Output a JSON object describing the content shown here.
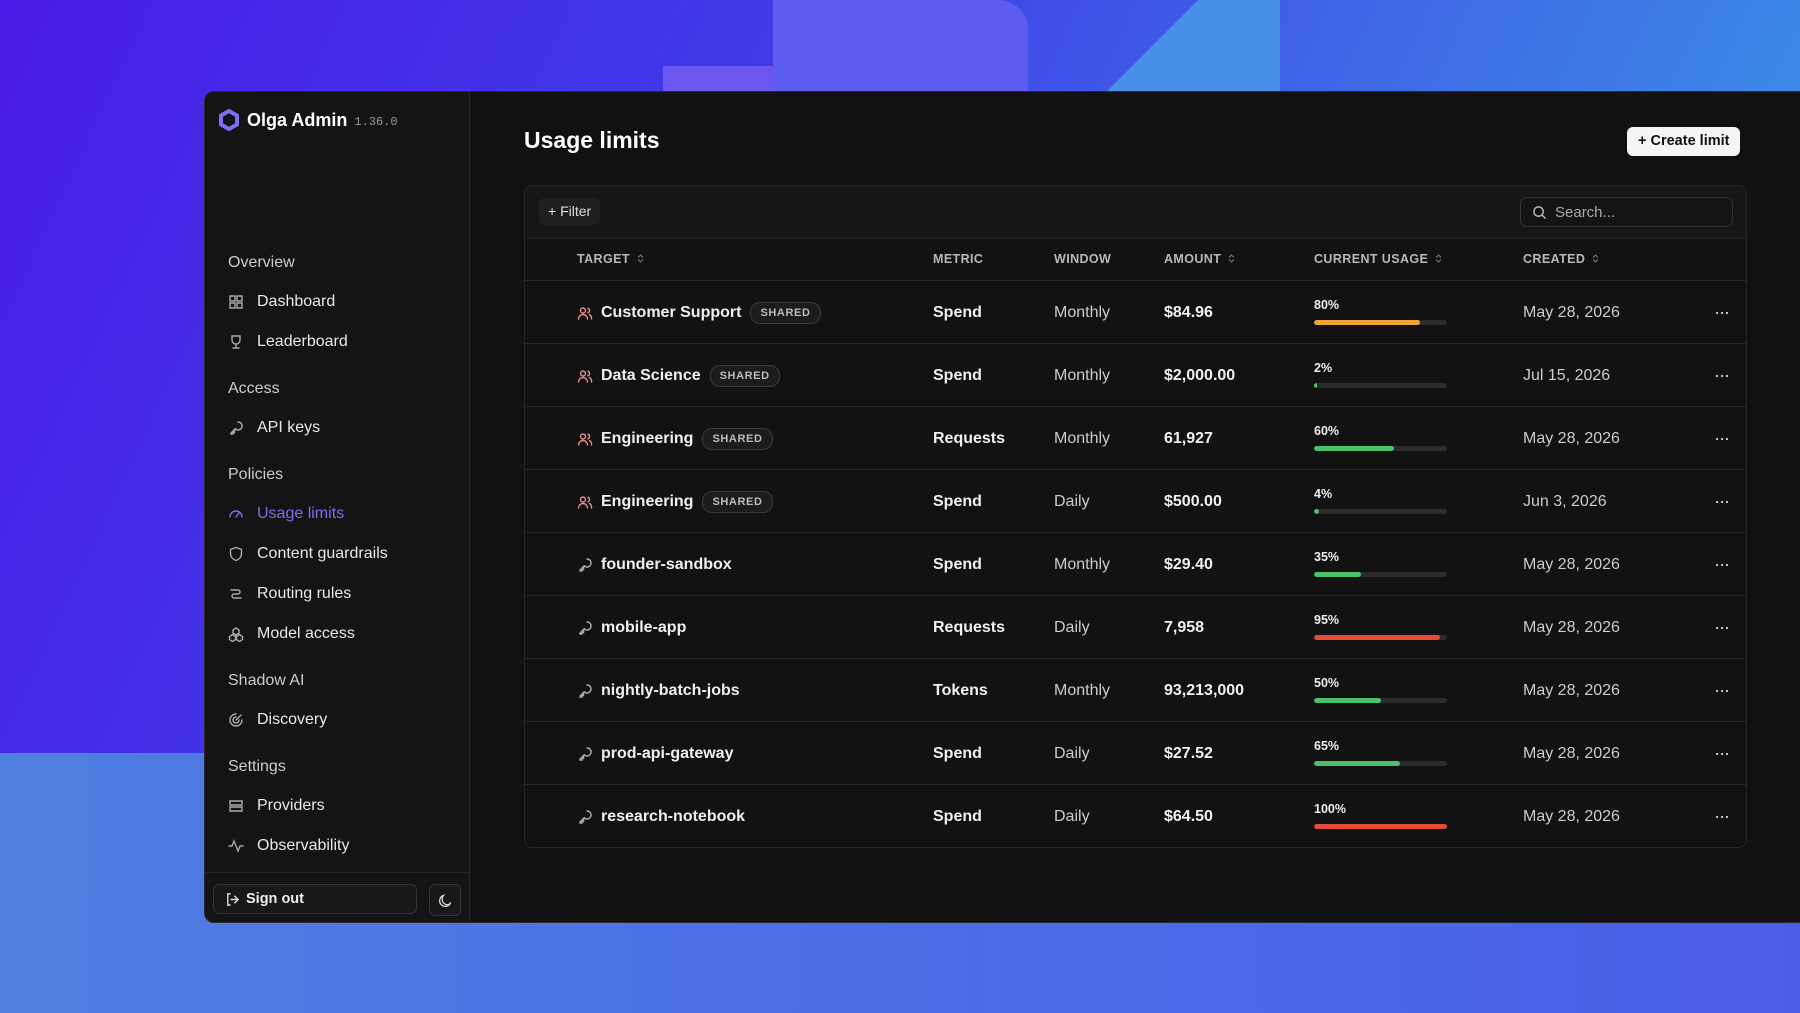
{
  "sidebar": {
    "brand": "Olga Admin",
    "version": "1.36.0",
    "groups": [
      {
        "title": "Overview",
        "items": [
          {
            "label": "Dashboard"
          },
          {
            "label": "Leaderboard"
          }
        ]
      },
      {
        "title": "Access",
        "items": [
          {
            "label": "API keys"
          }
        ]
      },
      {
        "title": "Policies",
        "items": [
          {
            "label": "Usage limits",
            "active": true
          },
          {
            "label": "Content guardrails"
          },
          {
            "label": "Routing rules"
          },
          {
            "label": "Model access"
          }
        ]
      },
      {
        "title": "Shadow AI",
        "items": [
          {
            "label": "Discovery"
          }
        ]
      },
      {
        "title": "Settings",
        "items": [
          {
            "label": "Providers"
          },
          {
            "label": "Observability"
          }
        ]
      }
    ],
    "sign_out": "Sign out"
  },
  "main": {
    "title": "Usage limits",
    "create_button": "+ Create limit",
    "filter_button": "+ Filter",
    "search_placeholder": "Search..."
  },
  "table": {
    "usage_scale": [
      0,
      100
    ],
    "columns": [
      {
        "label": "TARGET",
        "sortable": true
      },
      {
        "label": "METRIC",
        "sortable": false
      },
      {
        "label": "WINDOW",
        "sortable": false
      },
      {
        "label": "AMOUNT",
        "sortable": true
      },
      {
        "label": "CURRENT USAGE",
        "sortable": true
      },
      {
        "label": "CREATED",
        "sortable": true
      }
    ],
    "rows": [
      {
        "icon": "team",
        "target": "Customer Support",
        "badge": "SHARED",
        "metric": "Spend",
        "window": "Monthly",
        "amount": "$84.96",
        "usage": 80,
        "usage_label": "80%",
        "usage_color": "#f0a53a",
        "created": "May 28, 2026"
      },
      {
        "icon": "team",
        "target": "Data Science",
        "badge": "SHARED",
        "metric": "Spend",
        "window": "Monthly",
        "amount": "$2,000.00",
        "usage": 2,
        "usage_label": "2%",
        "usage_color": "#4cc16a",
        "created": "Jul 15, 2026"
      },
      {
        "icon": "team",
        "target": "Engineering",
        "badge": "SHARED",
        "metric": "Requests",
        "window": "Monthly",
        "amount": "61,927",
        "usage": 60,
        "usage_label": "60%",
        "usage_color": "#4cc16a",
        "created": "May 28, 2026"
      },
      {
        "icon": "team",
        "target": "Engineering",
        "badge": "SHARED",
        "metric": "Spend",
        "window": "Daily",
        "amount": "$500.00",
        "usage": 4,
        "usage_label": "4%",
        "usage_color": "#4cc16a",
        "created": "Jun 3, 2026"
      },
      {
        "icon": "key",
        "target": "founder-sandbox",
        "metric": "Spend",
        "window": "Monthly",
        "amount": "$29.40",
        "usage": 35,
        "usage_label": "35%",
        "usage_color": "#4cc16a",
        "created": "May 28, 2026"
      },
      {
        "icon": "key",
        "target": "mobile-app",
        "metric": "Requests",
        "window": "Daily",
        "amount": "7,958",
        "usage": 95,
        "usage_label": "95%",
        "usage_color": "#e5493a",
        "created": "May 28, 2026"
      },
      {
        "icon": "key",
        "target": "nightly-batch-jobs",
        "metric": "Tokens",
        "window": "Monthly",
        "amount": "93,213,000",
        "usage": 50,
        "usage_label": "50%",
        "usage_color": "#4cc16a",
        "created": "May 28, 2026"
      },
      {
        "icon": "key",
        "target": "prod-api-gateway",
        "metric": "Spend",
        "window": "Daily",
        "amount": "$27.52",
        "usage": 65,
        "usage_label": "65%",
        "usage_color": "#4cc16a",
        "created": "May 28, 2026"
      },
      {
        "icon": "key",
        "target": "research-notebook",
        "metric": "Spend",
        "window": "Daily",
        "amount": "$64.50",
        "usage": 100,
        "usage_label": "100%",
        "usage_color": "#e5493a",
        "created": "May 28, 2026"
      }
    ]
  }
}
